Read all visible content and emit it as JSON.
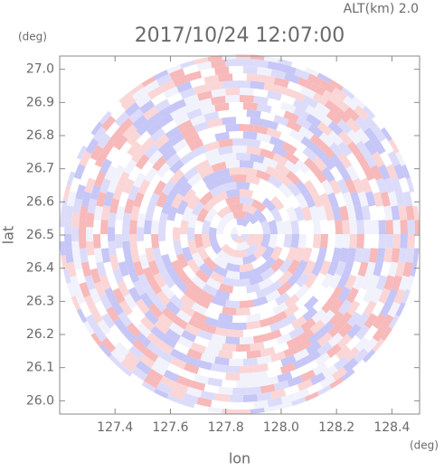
{
  "chart_data": {
    "type": "image",
    "title": "2017/10/24 12:07:00",
    "subtitle": "ALT(km) 2.0",
    "y_unit": "(deg)",
    "x_unit": "(deg)",
    "xlabel": "lon",
    "ylabel": "lat",
    "xlim": [
      127.2,
      128.5
    ],
    "ylim": [
      25.96,
      27.04
    ],
    "xticks": [
      127.4,
      127.6,
      127.8,
      {
        "value": 128,
        "label": "128.0"
      },
      128.2,
      128.4
    ],
    "yticks": [
      {
        "value": 26,
        "label": "26.0"
      },
      26.1,
      26.2,
      26.3,
      26.4,
      26.5,
      26.6,
      26.7,
      26.8,
      26.9,
      {
        "value": 27,
        "label": "27.0"
      }
    ]
  }
}
